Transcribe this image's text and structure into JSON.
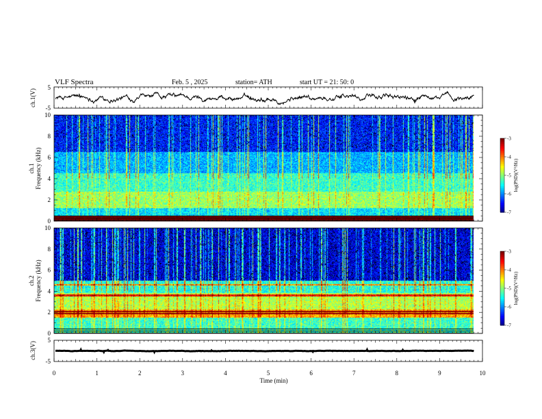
{
  "header": {
    "title": "VLF  Spectra",
    "date": "Feb. 5  , 2025",
    "station": "station= ATH",
    "start": "start  UT  =   21: 50: 0"
  },
  "chart_data": [
    {
      "type": "line",
      "panel": "ch1-waveform",
      "ylabel": "ch.1(V)",
      "yticks": [
        "5",
        "-5"
      ],
      "ylim": [
        -5,
        5
      ],
      "xlim": [
        0,
        10
      ],
      "series": [
        {
          "mean": 0,
          "amplitude": 0.8,
          "x_end": 9.8
        }
      ]
    },
    {
      "type": "heatmap",
      "panel": "ch1-spectrogram",
      "ylabel": "ch.1\nFrequency (kHz)",
      "yticks": [
        "0",
        "2",
        "4",
        "6",
        "8",
        "10"
      ],
      "ylim": [
        0,
        10
      ],
      "xlim": [
        0,
        10
      ],
      "x_end": 9.8,
      "colorbar": {
        "label": "log(PSD)(V²/Hz)",
        "ticks": [
          "-3",
          "-4",
          "-5",
          "-6",
          "-7"
        ],
        "range": [
          -7,
          -3
        ]
      },
      "bands": [
        {
          "from_khz": 0.0,
          "to_khz": 0.5,
          "log_psd": -2.8
        },
        {
          "from_khz": 0.5,
          "to_khz": 1.2,
          "log_psd": -5.6
        },
        {
          "from_khz": 1.2,
          "to_khz": 2.8,
          "log_psd": -4.9
        },
        {
          "from_khz": 2.8,
          "to_khz": 4.5,
          "log_psd": -5.3
        },
        {
          "from_khz": 4.5,
          "to_khz": 6.5,
          "log_psd": -5.8
        },
        {
          "from_khz": 6.5,
          "to_khz": 10.0,
          "log_psd": -6.4
        }
      ],
      "spheric_density": 0.17
    },
    {
      "type": "heatmap",
      "panel": "ch2-spectrogram",
      "ylabel": "ch.2\nFrequency (kHz)",
      "yticks": [
        "0",
        "2",
        "4",
        "6",
        "8",
        "10"
      ],
      "ylim": [
        0,
        10
      ],
      "xlim": [
        0,
        10
      ],
      "x_end": 9.8,
      "colorbar": {
        "label": "log(PSD)(V²/Hz)",
        "ticks": [
          "-3",
          "-4",
          "-5",
          "-6",
          "-7"
        ],
        "range": [
          -7,
          -3
        ]
      },
      "bands": [
        {
          "from_khz": 0.0,
          "to_khz": 1.5,
          "log_psd": -5.3
        },
        {
          "from_khz": 1.5,
          "to_khz": 2.3,
          "log_psd": -4.2
        },
        {
          "from_khz": 2.3,
          "to_khz": 3.8,
          "log_psd": -4.8
        },
        {
          "from_khz": 3.8,
          "to_khz": 5.0,
          "log_psd": -5.4
        },
        {
          "from_khz": 5.0,
          "to_khz": 10.0,
          "log_psd": -6.6
        }
      ],
      "lines_khz": [
        1.9,
        2.1,
        3.6,
        4.6
      ],
      "spheric_density": 0.22
    },
    {
      "type": "line",
      "panel": "ch3-waveform",
      "ylabel": "ch.3(V)",
      "yticks": [
        "5",
        "-5"
      ],
      "ylim": [
        -5,
        5
      ],
      "xlim": [
        0,
        10
      ],
      "series": [
        {
          "mean": 0,
          "amplitude": 0.25,
          "x_end": 9.8
        }
      ]
    }
  ],
  "xaxis": {
    "label": "Time  (min)",
    "ticks": [
      "0",
      "1",
      "2",
      "3",
      "4",
      "5",
      "6",
      "7",
      "8",
      "9",
      "10"
    ]
  }
}
